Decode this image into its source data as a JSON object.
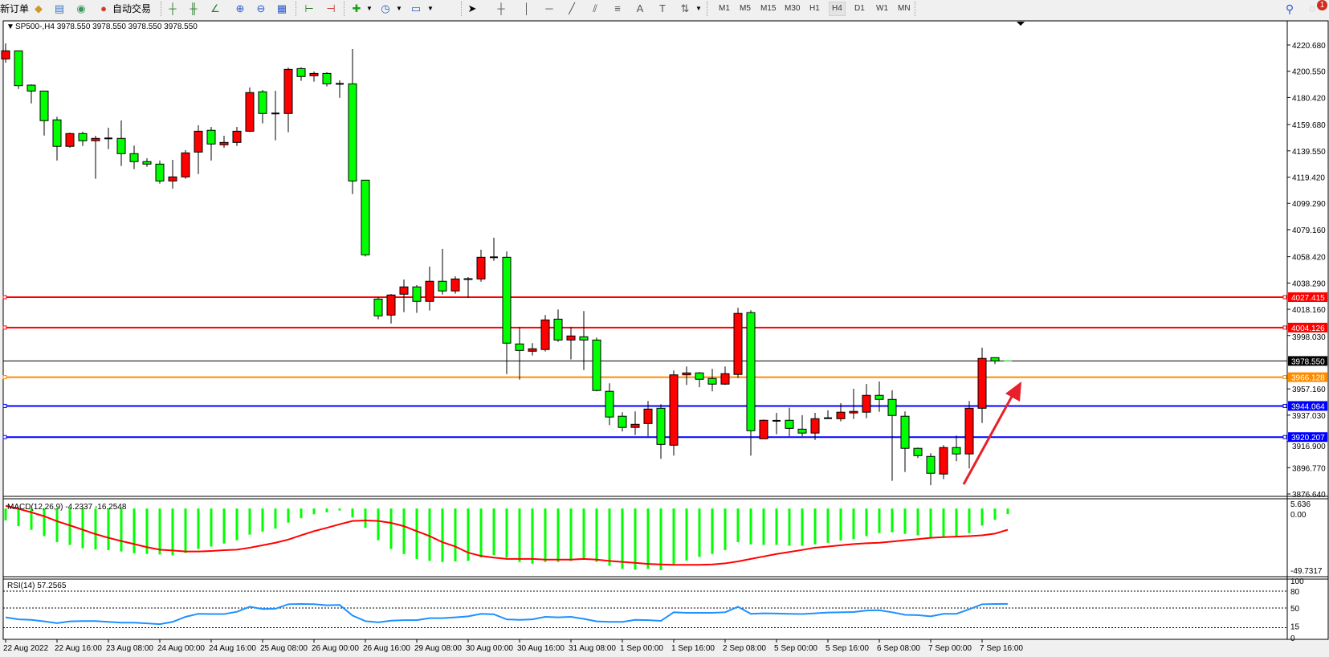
{
  "toolbar": {
    "new_order": "新订单",
    "auto_trading": "自动交易",
    "timeframes": [
      "M1",
      "M5",
      "M15",
      "M30",
      "H1",
      "H4",
      "D1",
      "W1",
      "MN"
    ],
    "active_timeframe": "H4",
    "notification_count": "1",
    "icons": [
      "market-watch-icon",
      "data-window-icon",
      "navigator-icon",
      "auto-trading-icon",
      "bar-chart-icon",
      "candlestick-icon",
      "line-chart-icon",
      "zoom-in-icon",
      "zoom-out-icon",
      "tile-windows-icon",
      "chart-shift-icon",
      "auto-scroll-icon",
      "new-chart-icon",
      "periods-icon",
      "templates-icon",
      "cursor-icon",
      "crosshair-icon",
      "vertical-line-icon",
      "horizontal-line-icon",
      "trendline-icon",
      "equidistant-channel-icon",
      "fibonacci-icon",
      "text-icon",
      "text-label-icon",
      "arrows-icon",
      "search-icon",
      "chat-icon"
    ]
  },
  "chart": {
    "header": "SP500-,H4  3978.550 3978.550 3978.550 3978.550",
    "macd_header": "MACD(12,26,9) -4.2337 -16.2548",
    "rsi_header": "RSI(14) 57.2565",
    "colors": {
      "bull": "#ff0000",
      "bear": "#00ff00",
      "macd_hist": "#00ff00",
      "macd_signal": "#ff0000",
      "rsi": "#1e90ff",
      "arrow": "#e8202a"
    }
  },
  "chart_data": {
    "type": "candlestick",
    "symbol": "SP500-",
    "timeframe": "H4",
    "ylim": [
      3876.64,
      4220.68
    ],
    "price_ticks": [
      "4220.680",
      "4200.550",
      "4180.420",
      "4159.680",
      "4139.550",
      "4119.420",
      "4099.290",
      "4079.160",
      "4058.420",
      "4038.290",
      "4018.160",
      "3998.030",
      "3957.160",
      "3937.030",
      "3916.900",
      "3896.770",
      "3876.640"
    ],
    "current_price": {
      "value": 3978.55,
      "label": "3978.550"
    },
    "horizontal_lines": [
      {
        "value": 4027.415,
        "label": "4027.415",
        "color": "#ff0000"
      },
      {
        "value": 4004.126,
        "label": "4004.126",
        "color": "#ff0000"
      },
      {
        "value": 3966.128,
        "label": "3966.128",
        "color": "#ff8c00"
      },
      {
        "value": 3944.064,
        "label": "3944.064",
        "color": "#0000ff"
      },
      {
        "value": 3920.207,
        "label": "3920.207",
        "color": "#0000ff"
      }
    ],
    "date_labels": [
      "22 Aug 2022",
      "22 Aug 16:00",
      "23 Aug 08:00",
      "24 Aug 00:00",
      "24 Aug 16:00",
      "25 Aug 08:00",
      "26 Aug 00:00",
      "26 Aug 16:00",
      "29 Aug 08:00",
      "30 Aug 00:00",
      "30 Aug 16:00",
      "31 Aug 08:00",
      "1 Sep 00:00",
      "1 Sep 16:00",
      "2 Sep 08:00",
      "5 Sep 00:00",
      "5 Sep 16:00",
      "6 Sep 08:00",
      "7 Sep 00:00",
      "7 Sep 16:00"
    ],
    "candles_ohlc": [
      [
        4210.0,
        4221.9,
        4207.1,
        4216.2
      ],
      [
        4216.2,
        4216.2,
        4187.0,
        4189.5
      ],
      [
        4189.9,
        4190.5,
        4175.9,
        4185.4
      ],
      [
        4185.4,
        4185.4,
        4151.3,
        4162.7
      ],
      [
        4163.3,
        4165.7,
        4132.1,
        4143.0
      ],
      [
        4143.0,
        4153.6,
        4141.9,
        4152.8
      ],
      [
        4152.8,
        4154.2,
        4143.3,
        4147.3
      ],
      [
        4147.3,
        4151.1,
        4118.1,
        4149.1
      ],
      [
        4149.1,
        4157.3,
        4140.9,
        4149.1
      ],
      [
        4149.1,
        4162.8,
        4128.0,
        4137.4
      ],
      [
        4137.4,
        4143.6,
        4125.5,
        4131.3
      ],
      [
        4131.3,
        4133.9,
        4127.3,
        4129.4
      ],
      [
        4129.4,
        4132.1,
        4114.4,
        4116.5
      ],
      [
        4116.5,
        4132.7,
        4110.7,
        4119.6
      ],
      [
        4119.6,
        4140.1,
        4118.1,
        4138.0
      ],
      [
        4138.6,
        4159.2,
        4121.8,
        4154.6
      ],
      [
        4155.3,
        4157.9,
        4132.1,
        4144.8
      ],
      [
        4144.2,
        4151.1,
        4141.9,
        4146.0
      ],
      [
        4146.0,
        4157.9,
        4143.3,
        4154.6
      ],
      [
        4154.6,
        4188.1,
        4154.0,
        4184.2
      ],
      [
        4184.8,
        4186.2,
        4160.6,
        4168.2
      ],
      [
        4168.2,
        4185.6,
        4147.7,
        4168.2
      ],
      [
        4168.2,
        4203.4,
        4153.8,
        4202.0
      ],
      [
        4202.6,
        4203.6,
        4193.2,
        4196.5
      ],
      [
        4197.1,
        4200.4,
        4192.6,
        4198.9
      ],
      [
        4198.9,
        4199.8,
        4188.9,
        4190.9
      ],
      [
        4190.9,
        4193.6,
        4180.2,
        4190.9
      ],
      [
        4190.9,
        4217.6,
        4106.4,
        4116.5
      ],
      [
        4117.1,
        4117.1,
        4058.6,
        4059.9
      ],
      [
        4026.0,
        4027.4,
        4010.4,
        4013.1
      ],
      [
        4013.7,
        4029.9,
        4007.3,
        4029.1
      ],
      [
        4029.7,
        4041.0,
        4016.0,
        4035.3
      ],
      [
        4035.3,
        4036.7,
        4015.4,
        4024.2
      ],
      [
        4024.2,
        4050.9,
        4017.2,
        4039.6
      ],
      [
        4039.6,
        4064.4,
        4029.5,
        4032.2
      ],
      [
        4032.2,
        4043.4,
        4030.1,
        4041.4
      ],
      [
        4041.4,
        4042.8,
        4027.0,
        4041.6
      ],
      [
        4041.4,
        4063.8,
        4039.3,
        4058.0
      ],
      [
        4058.0,
        4073.0,
        4055.3,
        4058.0
      ],
      [
        4058.0,
        4062.5,
        3968.5,
        3992.2
      ],
      [
        3991.6,
        4004.5,
        3964.3,
        3986.6
      ],
      [
        3986.0,
        3992.2,
        3982.7,
        3987.9
      ],
      [
        3987.3,
        4013.7,
        3985.8,
        4010.0
      ],
      [
        4010.6,
        4018.0,
        3993.2,
        3994.6
      ],
      [
        3994.6,
        4004.5,
        3979.7,
        3997.7
      ],
      [
        3997.1,
        4016.8,
        3971.6,
        3994.6
      ],
      [
        3994.6,
        3996.5,
        3955.3,
        3955.9
      ],
      [
        3955.3,
        3961.4,
        3929.4,
        3935.6
      ],
      [
        3936.2,
        3939.3,
        3924.5,
        3927.6
      ],
      [
        3927.6,
        3939.9,
        3921.8,
        3930.0
      ],
      [
        3930.6,
        3947.9,
        3920.8,
        3941.7
      ],
      [
        3942.3,
        3945.4,
        3903.6,
        3914.6
      ],
      [
        3914.0,
        3971.3,
        3906.0,
        3967.9
      ],
      [
        3967.9,
        3974.3,
        3960.2,
        3969.4
      ],
      [
        3969.4,
        3970.1,
        3958.4,
        3964.5
      ],
      [
        3965.1,
        3972.5,
        3955.3,
        3960.8
      ],
      [
        3960.8,
        3974.3,
        3960.2,
        3968.8
      ],
      [
        3968.2,
        4019.3,
        3965.5,
        4015.0
      ],
      [
        4015.6,
        4017.4,
        3906.0,
        3925.1
      ],
      [
        3918.9,
        3933.7,
        3918.9,
        3933.1
      ],
      [
        3932.7,
        3938.8,
        3922.4,
        3932.7
      ],
      [
        3933.1,
        3942.7,
        3920.8,
        3926.9
      ],
      [
        3926.3,
        3937.0,
        3920.8,
        3923.3
      ],
      [
        3923.3,
        3938.8,
        3918.0,
        3934.3
      ],
      [
        3934.7,
        3940.7,
        3934.7,
        3934.7
      ],
      [
        3934.3,
        3946.2,
        3932.3,
        3939.3
      ],
      [
        3938.7,
        3957.3,
        3934.1,
        3939.9
      ],
      [
        3939.3,
        3960.9,
        3934.7,
        3952.2
      ],
      [
        3952.2,
        3962.8,
        3939.6,
        3949.1
      ],
      [
        3949.1,
        3956.1,
        3886.7,
        3936.8
      ],
      [
        3936.2,
        3939.9,
        3893.5,
        3911.6
      ],
      [
        3911.6,
        3912.2,
        3904.2,
        3906.0
      ],
      [
        3905.4,
        3907.9,
        3883.3,
        3892.5
      ],
      [
        3891.9,
        3914.0,
        3888.0,
        3912.2
      ],
      [
        3912.2,
        3921.4,
        3901.7,
        3907.3
      ],
      [
        3907.3,
        3947.9,
        3896.2,
        3942.3
      ],
      [
        3942.3,
        3988.7,
        3931.0,
        3980.5
      ],
      [
        3981.1,
        3981.1,
        3976.2,
        3978.6
      ],
      [
        3978.55,
        3978.55,
        3978.55,
        3978.55
      ]
    ],
    "macd": {
      "ylim": [
        -49.7317,
        5.636
      ],
      "tick_labels": [
        "5.636",
        "0.00",
        "-49.7317"
      ],
      "histogram": [
        -9.1,
        -13.5,
        -16.3,
        -21.1,
        -25.7,
        -27.9,
        -30.4,
        -31.4,
        -31.9,
        -32.9,
        -34.2,
        -34.8,
        -35.2,
        -35.9,
        -34.0,
        -31.0,
        -29.1,
        -26.8,
        -24.3,
        -20.0,
        -17.7,
        -15.4,
        -10.8,
        -7.4,
        -4.4,
        -2.9,
        -1.5,
        -6.8,
        -14.8,
        -24.3,
        -31.0,
        -34.8,
        -38.6,
        -40.1,
        -41.0,
        -40.5,
        -40.1,
        -37.6,
        -35.7,
        -37.6,
        -41.0,
        -42.2,
        -41.0,
        -41.0,
        -40.1,
        -38.6,
        -40.9,
        -43.9,
        -46.2,
        -46.7,
        -46.2,
        -47.3,
        -42.8,
        -39.9,
        -37.1,
        -34.8,
        -31.9,
        -25.7,
        -27.4,
        -27.9,
        -27.9,
        -28.5,
        -28.5,
        -27.4,
        -26.2,
        -24.5,
        -23.4,
        -21.1,
        -18.8,
        -18.2,
        -19.4,
        -20.5,
        -21.9,
        -22.2,
        -21.7,
        -18.8,
        -13.1,
        -8.6,
        -4.2337
      ],
      "signal": [
        2.1,
        -0.2,
        -2.9,
        -5.9,
        -9.7,
        -12.9,
        -16.2,
        -19.6,
        -22.4,
        -24.9,
        -27.2,
        -29.6,
        -31.5,
        -32.1,
        -32.9,
        -32.9,
        -32.5,
        -31.9,
        -31.5,
        -30.0,
        -28.1,
        -26.2,
        -23.8,
        -20.5,
        -17.3,
        -14.8,
        -12.0,
        -9.5,
        -9.1,
        -9.5,
        -11.0,
        -13.5,
        -17.3,
        -21.1,
        -25.8,
        -29.1,
        -33.8,
        -36.3,
        -37.6,
        -38.6,
        -38.6,
        -38.6,
        -39.1,
        -39.1,
        -39.1,
        -38.6,
        -39.1,
        -40.1,
        -40.9,
        -41.6,
        -42.4,
        -42.8,
        -43.1,
        -43.1,
        -43.1,
        -42.8,
        -42.0,
        -40.5,
        -38.6,
        -36.7,
        -34.8,
        -33.3,
        -31.7,
        -30.0,
        -29.1,
        -28.1,
        -27.2,
        -26.6,
        -26.2,
        -25.3,
        -24.3,
        -23.4,
        -22.4,
        -21.9,
        -21.5,
        -21.1,
        -20.5,
        -19.2,
        -16.2548
      ]
    },
    "rsi": {
      "levels": [
        80,
        50,
        15
      ],
      "tick_labels": [
        "100",
        "80",
        "50",
        "15",
        "0"
      ],
      "values": [
        33.4,
        29.8,
        28.9,
        26.2,
        23.1,
        26.2,
        26.7,
        26.7,
        25.3,
        24.0,
        24.0,
        22.6,
        21.3,
        25.3,
        34.3,
        39.7,
        39.2,
        39.2,
        43.3,
        52.2,
        48.2,
        48.7,
        56.7,
        57.2,
        56.7,
        54.9,
        55.5,
        36.5,
        26.7,
        24.4,
        27.5,
        28.4,
        28.4,
        32.0,
        32.0,
        33.4,
        35.2,
        39.7,
        38.8,
        29.8,
        28.9,
        29.8,
        34.3,
        33.4,
        34.3,
        30.7,
        26.2,
        25.3,
        25.3,
        28.9,
        28.4,
        27.1,
        42.4,
        41.5,
        41.5,
        41.5,
        42.4,
        52.2,
        39.7,
        40.6,
        40.1,
        39.7,
        39.2,
        40.6,
        41.9,
        42.4,
        42.8,
        45.5,
        46.0,
        42.4,
        37.9,
        37.4,
        35.2,
        39.7,
        39.7,
        47.8,
        56.7,
        57.2,
        57.2565
      ]
    }
  }
}
